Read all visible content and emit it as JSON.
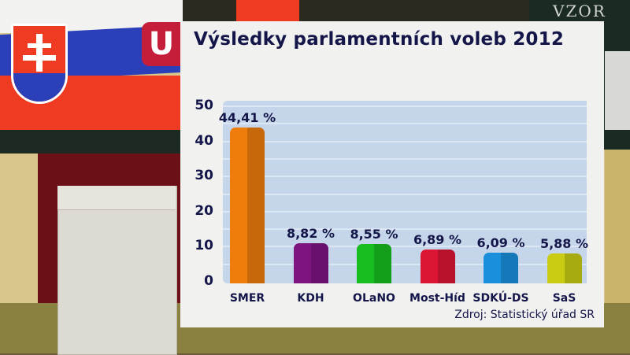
{
  "broadcaster_logo": "U",
  "background": {
    "board_text": "VZOR"
  },
  "chart_data": {
    "type": "bar",
    "title": "Výsledky parlamentních voleb 2012",
    "categories": [
      "SMER",
      "KDH",
      "OLaNO",
      "Most-Híd",
      "SDKÚ-DS",
      "SaS"
    ],
    "values": [
      44.41,
      8.82,
      8.55,
      6.89,
      6.09,
      5.88
    ],
    "value_labels": [
      "44,41 %",
      "8,82 %",
      "8,55 %",
      "6,89 %",
      "6,09 %",
      "5,88 %"
    ],
    "colors": [
      "#ee7d0e",
      "#7d1480",
      "#18be20",
      "#dc1534",
      "#1a8fdc",
      "#c9cc12"
    ],
    "xlabel": "",
    "ylabel": "",
    "ylim": [
      0,
      50
    ],
    "yticks": [
      "50",
      "40",
      "30",
      "20",
      "10",
      "0"
    ],
    "grid": true,
    "legend": "none",
    "source": "Zdroj: Statistický úřad SR"
  }
}
